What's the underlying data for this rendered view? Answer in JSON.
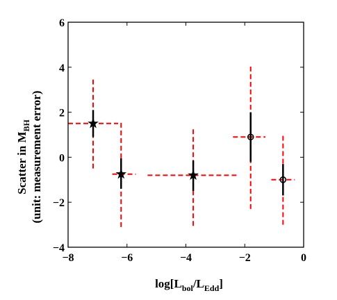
{
  "chart_data": {
    "type": "scatter",
    "title": "",
    "xlabel": {
      "main": "log[L",
      "sub1": "bol",
      "mid": "/L",
      "sub2": "Edd",
      "end": "]"
    },
    "ylabel": {
      "line1_main": "Scatter in M",
      "line1_sub": "BH",
      "line2": "(unit: measurement error)"
    },
    "xlim": [
      -8,
      0
    ],
    "ylim": [
      -4,
      6
    ],
    "x_ticks": [
      -8,
      -6,
      -4,
      -2,
      0
    ],
    "y_ticks": [
      -4,
      -2,
      0,
      2,
      4,
      6
    ],
    "x_tick_labels": [
      "−8",
      "−6",
      "−4",
      "−2",
      "0"
    ],
    "y_tick_labels": [
      "−4",
      "−2",
      "0",
      "2",
      "4",
      "6"
    ],
    "grid": false,
    "colors": {
      "black_error": "#000000",
      "red_dashed": "#ff0000"
    },
    "points": [
      {
        "x": -7.15,
        "y": 1.5,
        "marker": "star",
        "black_err_y": [
          0.9,
          2.1
        ],
        "red_x": [
          -8.0,
          -6.3
        ],
        "red_y": [
          -0.5,
          3.5
        ]
      },
      {
        "x": -6.2,
        "y": -0.75,
        "marker": "star",
        "black_err_y": [
          -1.4,
          -0.05
        ],
        "red_x": [
          -6.5,
          -5.7
        ],
        "red_y": [
          -3.1,
          1.6
        ]
      },
      {
        "x": -3.75,
        "y": -0.8,
        "marker": "star",
        "black_err_y": [
          -1.5,
          -0.15
        ],
        "red_x": [
          -5.3,
          -2.2
        ],
        "red_y": [
          -3.05,
          1.3
        ]
      },
      {
        "x": -1.8,
        "y": 0.9,
        "marker": "circle",
        "black_err_y": [
          -0.2,
          2.0
        ],
        "red_x": [
          -2.4,
          -1.3
        ],
        "red_y": [
          -2.3,
          4.05
        ]
      },
      {
        "x": -0.7,
        "y": -1.0,
        "marker": "circle",
        "black_err_y": [
          -1.7,
          -0.3
        ],
        "red_x": [
          -1.1,
          -0.3
        ],
        "red_y": [
          -3.0,
          1.0
        ]
      }
    ]
  }
}
